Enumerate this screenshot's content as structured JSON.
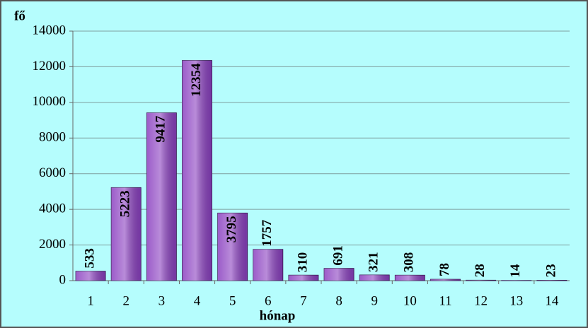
{
  "chart_data": {
    "type": "bar",
    "x_label": "hónap",
    "y_label": "fő",
    "categories": [
      "1",
      "2",
      "3",
      "4",
      "5",
      "6",
      "7",
      "8",
      "9",
      "10",
      "11",
      "12",
      "13",
      "14"
    ],
    "values": [
      533,
      5223,
      9417,
      12354,
      3795,
      1757,
      310,
      691,
      321,
      308,
      78,
      28,
      14,
      23
    ],
    "color": "#8a3fc0",
    "ylim": [
      0,
      14000
    ],
    "yticks": [
      0,
      2000,
      4000,
      6000,
      8000,
      10000,
      12000,
      14000
    ],
    "grid": true
  }
}
